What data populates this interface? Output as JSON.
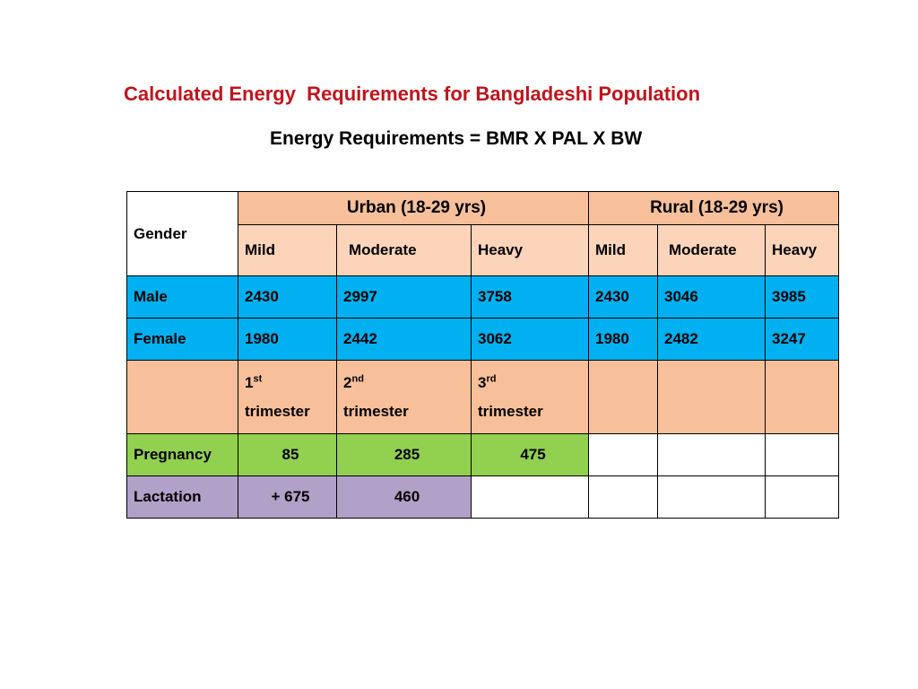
{
  "title": "Calculated Energy  Requirements for Bangladeshi Population",
  "subtitle": "Energy Requirements = BMR X PAL X BW",
  "table": {
    "gender_header": "Gender",
    "urban_header": "Urban (18-29 yrs)",
    "rural_header": "Rural (18-29 yrs)",
    "activity_levels": [
      "Mild",
      "Moderate",
      "Heavy",
      "Mild",
      "Moderate",
      "Heavy"
    ],
    "rows": [
      {
        "label": "Male",
        "values": [
          "2430",
          "2997",
          "3758",
          "2430",
          "3046",
          "3985"
        ]
      },
      {
        "label": "Female",
        "values": [
          "1980",
          "2442",
          "3062",
          "1980",
          "2482",
          "3247"
        ]
      }
    ],
    "trimesters": [
      {
        "num": "1",
        "sup": "st",
        "word": "trimester"
      },
      {
        "num": "2",
        "sup": "nd",
        "word": "trimester"
      },
      {
        "num": "3",
        "sup": "rd",
        "word": "trimester"
      }
    ],
    "pregnancy": {
      "label": "Pregnancy",
      "values": [
        "85",
        "285",
        "475"
      ]
    },
    "lactation": {
      "label": "Lactation",
      "values": [
        "+ 675",
        "460"
      ]
    }
  },
  "colors": {
    "title": "#c0141c",
    "header_orange": "#f8c09a",
    "header_peach": "#fbd4b9",
    "row_blue": "#00b0f0",
    "pregnancy_green": "#92d050",
    "lactation_purple": "#b1a0c7"
  }
}
